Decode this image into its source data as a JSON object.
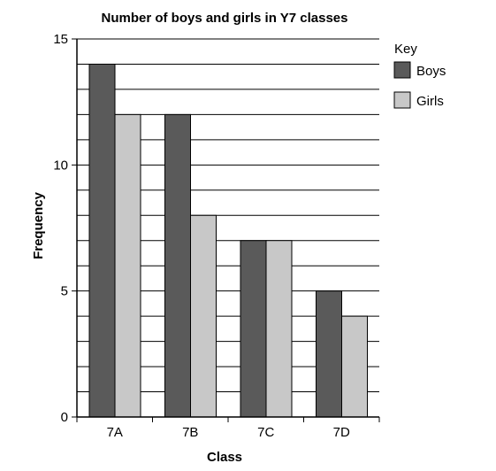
{
  "chart_data": {
    "type": "bar",
    "title": "Number of boys and girls in Y7 classes",
    "xlabel": "Class",
    "ylabel": "Frequency",
    "categories": [
      "7A",
      "7B",
      "7C",
      "7D"
    ],
    "series": [
      {
        "name": "Boys",
        "values": [
          14,
          12,
          7,
          5
        ],
        "color": "#5a5a5a"
      },
      {
        "name": "Girls",
        "values": [
          12,
          8,
          7,
          4
        ],
        "color": "#c8c8c8"
      }
    ],
    "ylim": [
      0,
      15
    ],
    "yticks": [
      0,
      5,
      10,
      15
    ],
    "grid_step": 1,
    "grid": true,
    "legend": {
      "title": "Key",
      "position": "right"
    }
  }
}
